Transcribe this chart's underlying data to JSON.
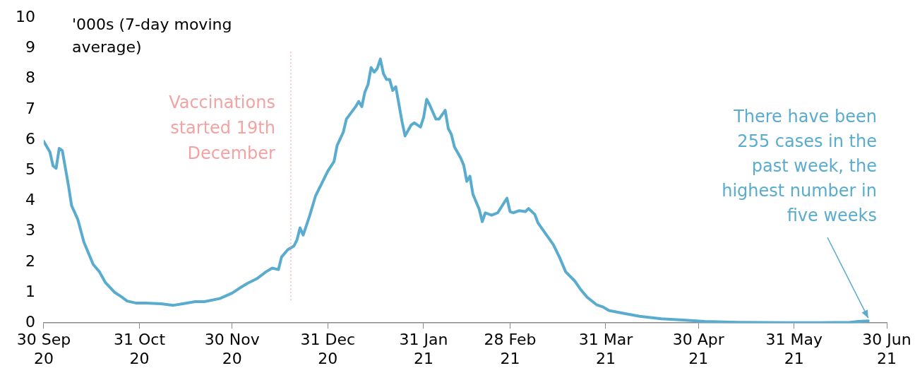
{
  "chart_data": {
    "type": "line",
    "ylabel": "'000s (7-day moving average)",
    "xlim": [
      "2020-09-30",
      "2021-06-30"
    ],
    "xticks": [
      {
        "value": "2020-09-30",
        "label": "30 Sep\n20"
      },
      {
        "value": "2020-10-31",
        "label": "31 Oct\n20"
      },
      {
        "value": "2020-11-30",
        "label": "30 Nov\n20"
      },
      {
        "value": "2020-12-31",
        "label": "31 Dec\n20"
      },
      {
        "value": "2021-01-31",
        "label": "31 Jan\n21"
      },
      {
        "value": "2021-02-28",
        "label": "28 Feb\n21"
      },
      {
        "value": "2021-03-31",
        "label": "31 Mar\n21"
      },
      {
        "value": "2021-04-30",
        "label": "30 Apr\n21"
      },
      {
        "value": "2021-05-31",
        "label": "31 May\n21"
      },
      {
        "value": "2021-06-30",
        "label": "30 Jun\n21"
      }
    ],
    "ylim": [
      0,
      10
    ],
    "yticks": [
      0,
      1,
      2,
      3,
      4,
      5,
      6,
      7,
      8,
      9,
      10
    ],
    "grid": false,
    "legend": false,
    "marker": "none",
    "line_style": "solid",
    "x": [
      "2020-09-30",
      "2020-10-02",
      "2020-10-03",
      "2020-10-04",
      "2020-10-05",
      "2020-10-06",
      "2020-10-08",
      "2020-10-09",
      "2020-10-11",
      "2020-10-13",
      "2020-10-16",
      "2020-10-18",
      "2020-10-20",
      "2020-10-23",
      "2020-10-25",
      "2020-10-27",
      "2020-10-30",
      "2020-11-02",
      "2020-11-07",
      "2020-11-11",
      "2020-11-14",
      "2020-11-18",
      "2020-11-21",
      "2020-11-26",
      "2020-11-30",
      "2020-12-03",
      "2020-12-05",
      "2020-12-08",
      "2020-12-11",
      "2020-12-13",
      "2020-12-15",
      "2020-12-16",
      "2020-12-18",
      "2020-12-20",
      "2020-12-21",
      "2020-12-22",
      "2020-12-23",
      "2020-12-25",
      "2020-12-27",
      "2020-12-29",
      "2020-12-31",
      "2021-01-02",
      "2021-01-03",
      "2021-01-05",
      "2021-01-06",
      "2021-01-09",
      "2021-01-10",
      "2021-01-11",
      "2021-01-12",
      "2021-01-13",
      "2021-01-14",
      "2021-01-15",
      "2021-01-16",
      "2021-01-17",
      "2021-01-18",
      "2021-01-19",
      "2021-01-20",
      "2021-01-21",
      "2021-01-22",
      "2021-01-24",
      "2021-01-25",
      "2021-01-27",
      "2021-01-28",
      "2021-01-30",
      "2021-01-31",
      "2021-02-01",
      "2021-02-02",
      "2021-02-04",
      "2021-02-05",
      "2021-02-07",
      "2021-02-08",
      "2021-02-09",
      "2021-02-10",
      "2021-02-12",
      "2021-02-13",
      "2021-02-14",
      "2021-02-15",
      "2021-02-16",
      "2021-02-18",
      "2021-02-19",
      "2021-02-20",
      "2021-02-22",
      "2021-02-24",
      "2021-02-25",
      "2021-02-27",
      "2021-02-28",
      "2021-03-01",
      "2021-03-03",
      "2021-03-05",
      "2021-03-06",
      "2021-03-08",
      "2021-03-09",
      "2021-03-11",
      "2021-03-14",
      "2021-03-16",
      "2021-03-18",
      "2021-03-21",
      "2021-03-23",
      "2021-03-25",
      "2021-03-28",
      "2021-03-30",
      "2021-04-01",
      "2021-04-06",
      "2021-04-11",
      "2021-04-18",
      "2021-04-25",
      "2021-05-02",
      "2021-05-13",
      "2021-05-28",
      "2021-06-08",
      "2021-06-18",
      "2021-06-21",
      "2021-06-24"
    ],
    "series": [
      {
        "color": "#5aaccf",
        "values": [
          5.95,
          5.6,
          5.15,
          5.07,
          5.72,
          5.65,
          4.5,
          3.85,
          3.4,
          2.65,
          1.92,
          1.68,
          1.32,
          1.0,
          0.87,
          0.72,
          0.65,
          0.65,
          0.63,
          0.58,
          0.63,
          0.7,
          0.7,
          0.8,
          0.98,
          1.18,
          1.3,
          1.45,
          1.68,
          1.8,
          1.75,
          2.16,
          2.4,
          2.52,
          2.72,
          3.12,
          2.88,
          3.48,
          4.16,
          4.57,
          4.98,
          5.29,
          5.82,
          6.25,
          6.68,
          7.09,
          7.26,
          7.09,
          7.57,
          7.81,
          8.37,
          8.22,
          8.34,
          8.65,
          8.17,
          7.98,
          7.98,
          7.62,
          7.74,
          6.61,
          6.13,
          6.49,
          6.56,
          6.42,
          6.73,
          7.33,
          7.14,
          6.68,
          6.68,
          6.97,
          6.37,
          6.18,
          5.77,
          5.41,
          5.17,
          4.64,
          4.81,
          4.21,
          3.73,
          3.32,
          3.61,
          3.53,
          3.61,
          3.77,
          4.09,
          3.65,
          3.61,
          3.68,
          3.65,
          3.75,
          3.56,
          3.29,
          3.0,
          2.57,
          2.16,
          1.68,
          1.37,
          1.08,
          0.84,
          0.6,
          0.53,
          0.41,
          0.31,
          0.22,
          0.14,
          0.1,
          0.05,
          0.02,
          0.01,
          0.01,
          0.02,
          0.05,
          0.07
        ]
      }
    ],
    "ref_lines": [
      {
        "axis": "x",
        "value": "2020-12-19",
        "label": "Vaccinations started 19th December",
        "color": "#f4a3a3",
        "line_style": "dotted"
      }
    ],
    "annotations": [
      {
        "text": "There have been 255 cases in the past week, the highest number in five weeks",
        "x": "2021-06-24",
        "y": 0.07
      }
    ]
  }
}
